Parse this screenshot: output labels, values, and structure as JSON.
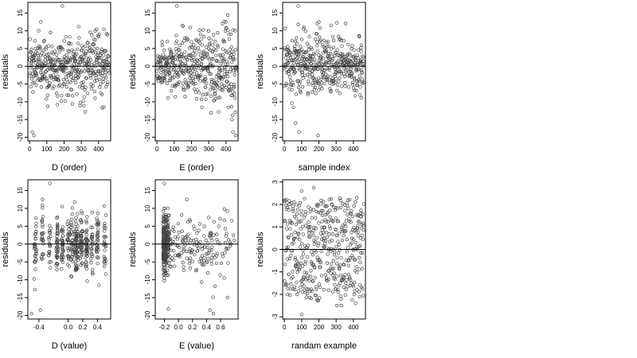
{
  "colors": {
    "points": "#444444",
    "axes": "#000000",
    "background": "#ffffff"
  },
  "chart_data": [
    {
      "type": "scatter",
      "xlabel": "D (order)",
      "ylabel": "residuals",
      "xlim": [
        -10,
        470
      ],
      "ylim": [
        -21,
        18
      ],
      "xticks": [
        0,
        100,
        200,
        300,
        400
      ],
      "xtick_labels": [
        "0",
        "100",
        "200",
        "300",
        "400"
      ],
      "yticks": [
        -20,
        -15,
        -10,
        -5,
        0,
        5,
        10,
        15
      ],
      "ytick_labels": [
        "-20",
        "-15",
        "-10",
        "-5",
        "0",
        "5",
        "10",
        "15"
      ],
      "reference_line": 0,
      "grid": false,
      "points": {
        "n": 450,
        "x_range": [
          0,
          460
        ],
        "residual_sd": 4.8,
        "structure": "order",
        "highlights": [
          [
            190,
            17
          ],
          [
            65,
            12.5
          ],
          [
            380,
            10
          ],
          [
            25,
            -19.5
          ],
          [
            15,
            -18.5
          ],
          [
            430,
            -11.5
          ]
        ]
      }
    },
    {
      "type": "scatter",
      "xlabel": "E (order)",
      "ylabel": "residuals",
      "xlim": [
        -10,
        470
      ],
      "ylim": [
        -21,
        18
      ],
      "xticks": [
        0,
        100,
        200,
        300,
        400
      ],
      "xtick_labels": [
        "0",
        "100",
        "200",
        "300",
        "400"
      ],
      "yticks": [
        -20,
        -15,
        -10,
        -5,
        0,
        5,
        10,
        15
      ],
      "ytick_labels": [
        "-20",
        "-15",
        "-10",
        "-5",
        "0",
        "5",
        "10",
        "15"
      ],
      "reference_line": 0,
      "grid": false,
      "points": {
        "n": 450,
        "x_range": [
          0,
          460
        ],
        "residual_sd": 4.8,
        "structure": "funnel",
        "highlights": [
          [
            115,
            17
          ],
          [
            400,
            12.5
          ],
          [
            380,
            12
          ],
          [
            440,
            -18.5
          ],
          [
            455,
            -19.5
          ],
          [
            435,
            -15
          ]
        ]
      }
    },
    {
      "type": "scatter",
      "xlabel": "sample index",
      "ylabel": "residuals",
      "xlim": [
        -10,
        470
      ],
      "ylim": [
        -21,
        18
      ],
      "xticks": [
        0,
        100,
        200,
        300,
        400
      ],
      "xtick_labels": [
        "0",
        "100",
        "200",
        "300",
        "400"
      ],
      "yticks": [
        -20,
        -15,
        -10,
        -5,
        0,
        5,
        10,
        15
      ],
      "ytick_labels": [
        "-20",
        "-15",
        "-10",
        "-5",
        "0",
        "5",
        "10",
        "15"
      ],
      "reference_line": 0,
      "grid": false,
      "points": {
        "n": 450,
        "x_range": [
          0,
          460
        ],
        "residual_sd": 4.8,
        "structure": "order",
        "highlights": [
          [
            80,
            17
          ],
          [
            200,
            12.5
          ],
          [
            190,
            12
          ],
          [
            85,
            -18.5
          ],
          [
            195,
            -19.5
          ],
          [
            65,
            -16
          ]
        ]
      }
    },
    {
      "type": "scatter",
      "xlabel": "D (value)",
      "ylabel": "residuals",
      "xlim": [
        -0.55,
        0.58
      ],
      "ylim": [
        -21,
        18
      ],
      "xticks": [
        -0.4,
        0.0,
        0.2,
        0.4
      ],
      "xtick_labels": [
        "-0.4",
        "0.0",
        "0.2",
        "0.4"
      ],
      "yticks": [
        -20,
        -15,
        -10,
        -5,
        0,
        5,
        10,
        15
      ],
      "ytick_labels": [
        "-20",
        "-15",
        "-10",
        "-5",
        "0",
        "5",
        "10",
        "15"
      ],
      "reference_line": 0,
      "grid": false,
      "points": {
        "n": 450,
        "x_range": [
          -0.5,
          0.55
        ],
        "residual_sd": 4.8,
        "structure": "columns",
        "highlights": [
          [
            -0.25,
            17
          ],
          [
            -0.35,
            12.5
          ],
          [
            -0.5,
            -19.5
          ],
          [
            -0.38,
            -18.5
          ],
          [
            0.42,
            -11.5
          ]
        ]
      }
    },
    {
      "type": "scatter",
      "xlabel": "E (value)",
      "ylabel": "residuals",
      "xlim": [
        -0.33,
        0.85
      ],
      "ylim": [
        -21,
        18
      ],
      "xticks": [
        -0.2,
        0.0,
        0.2,
        0.4,
        0.6
      ],
      "xtick_labels": [
        "-0.2",
        "0.0",
        "0.2",
        "0.4",
        "0.6"
      ],
      "yticks": [
        -20,
        -15,
        -10,
        -5,
        0,
        5,
        10,
        15
      ],
      "ytick_labels": [
        "-20",
        "-15",
        "-10",
        "-5",
        "0",
        "5",
        "10",
        "15"
      ],
      "reference_line": 0,
      "grid": false,
      "points": {
        "n": 450,
        "x_range": [
          -0.28,
          0.8
        ],
        "residual_sd": 4.8,
        "structure": "skewed",
        "highlights": [
          [
            -0.2,
            17
          ],
          [
            0.12,
            12.5
          ],
          [
            0.45,
            -18.5
          ],
          [
            0.5,
            -19.5
          ],
          [
            0.7,
            -15
          ]
        ]
      }
    },
    {
      "type": "scatter",
      "xlabel": "randam example",
      "ylabel": "residuals",
      "xlim": [
        -10,
        470
      ],
      "ylim": [
        -3.1,
        3.1
      ],
      "xticks": [
        0,
        100,
        200,
        300,
        400
      ],
      "xtick_labels": [
        "0",
        "100",
        "200",
        "300",
        "400"
      ],
      "yticks": [
        -3,
        -2,
        -1,
        0,
        1,
        2,
        3
      ],
      "ytick_labels": [
        "-3",
        "-2",
        "-1",
        "0",
        "1",
        "2",
        "3"
      ],
      "reference_line": 0,
      "grid": false,
      "points": {
        "n": 450,
        "x_range": [
          0,
          460
        ],
        "residual_sd": 1.0,
        "structure": "uniform",
        "highlights": [
          [
            170,
            2.75
          ],
          [
            100,
            2.6
          ],
          [
            420,
            2.3
          ],
          [
            100,
            -2.9
          ],
          [
            305,
            -2.5
          ],
          [
            330,
            -2.5
          ]
        ]
      }
    }
  ]
}
